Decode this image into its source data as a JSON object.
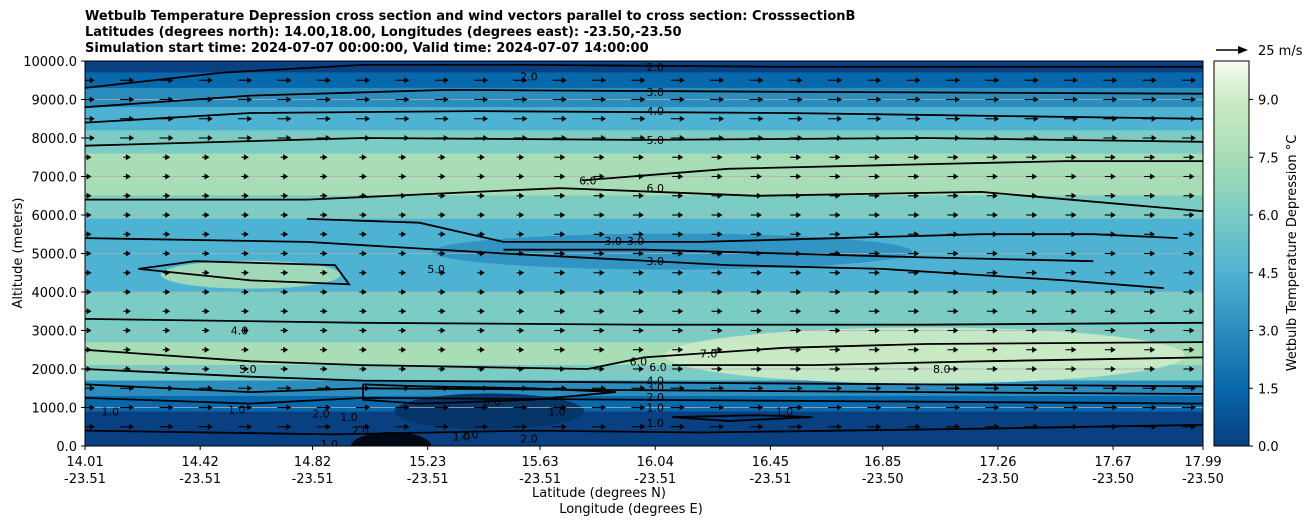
{
  "chart_data": {
    "type": "contour",
    "title_lines": [
      "Wetbulb Temperature Depression cross section and wind vectors parallel to cross section: CrosssectionB",
      "Latitudes (degrees north): 14.00,18.00, Longitudes (degrees east): -23.50,-23.50",
      "Simulation start time: 2024-07-07 00:00:00, Valid time: 2024-07-07 14:00:00"
    ],
    "xlabel_lat": "Latitude (degrees N)",
    "xlabel_lon": "Longitude (degrees E)",
    "ylabel": "Altitude (meters)",
    "ylim": [
      0,
      10000
    ],
    "yticks": [
      "0.0",
      "1000.0",
      "2000.0",
      "3000.0",
      "4000.0",
      "5000.0",
      "6000.0",
      "7000.0",
      "8000.0",
      "9000.0",
      "10000.0"
    ],
    "xticks": [
      {
        "lat": "14.01",
        "lon": "-23.51"
      },
      {
        "lat": "14.42",
        "lon": "-23.51"
      },
      {
        "lat": "14.82",
        "lon": "-23.51"
      },
      {
        "lat": "15.23",
        "lon": "-23.51"
      },
      {
        "lat": "15.63",
        "lon": "-23.51"
      },
      {
        "lat": "16.04",
        "lon": "-23.51"
      },
      {
        "lat": "16.45",
        "lon": "-23.51"
      },
      {
        "lat": "16.85",
        "lon": "-23.50"
      },
      {
        "lat": "17.26",
        "lon": "-23.50"
      },
      {
        "lat": "17.67",
        "lon": "-23.50"
      },
      {
        "lat": "17.99",
        "lon": "-23.50"
      }
    ],
    "colorbar": {
      "label": "Wetbulb Temperature Depression °C",
      "range": [
        0,
        10
      ],
      "ticks": [
        "0.0",
        "1.5",
        "3.0",
        "4.5",
        "6.0",
        "7.5",
        "9.0"
      ],
      "colormap": "GnBu_r"
    },
    "quiver_key": "25 m/s",
    "contour_labels": [
      {
        "text": "2.0",
        "lat": 15.59,
        "alt": 9600
      },
      {
        "text": "2.0",
        "lat": 16.04,
        "alt": 9850
      },
      {
        "text": "3.0",
        "lat": 16.04,
        "alt": 9200
      },
      {
        "text": "4.0",
        "lat": 16.04,
        "alt": 8700
      },
      {
        "text": "5.0",
        "lat": 16.04,
        "alt": 7950
      },
      {
        "text": "6.0",
        "lat": 16.04,
        "alt": 6700
      },
      {
        "text": "6.0",
        "lat": 15.8,
        "alt": 6900
      },
      {
        "text": "3.0",
        "lat": 15.89,
        "alt": 5330
      },
      {
        "text": "3.0",
        "lat": 15.97,
        "alt": 5330
      },
      {
        "text": "3.0",
        "lat": 16.04,
        "alt": 4800
      },
      {
        "text": "5.0",
        "lat": 15.26,
        "alt": 4600
      },
      {
        "text": "4.0",
        "lat": 14.56,
        "alt": 3000
      },
      {
        "text": "5.0",
        "lat": 14.59,
        "alt": 2000
      },
      {
        "text": "6.0",
        "lat": 15.98,
        "alt": 2200
      },
      {
        "text": "6.0",
        "lat": 16.05,
        "alt": 2050
      },
      {
        "text": "7.0",
        "lat": 16.23,
        "alt": 2400
      },
      {
        "text": "8.0",
        "lat": 17.06,
        "alt": 2000
      },
      {
        "text": "4.0",
        "lat": 16.04,
        "alt": 1700
      },
      {
        "text": "3.0",
        "lat": 16.04,
        "alt": 1530
      },
      {
        "text": "2.0",
        "lat": 16.04,
        "alt": 1270
      },
      {
        "text": "1.0",
        "lat": 16.04,
        "alt": 1000
      },
      {
        "text": "1.0",
        "lat": 16.04,
        "alt": 600
      },
      {
        "text": "1.0",
        "lat": 14.55,
        "alt": 950
      },
      {
        "text": "2.0",
        "lat": 14.85,
        "alt": 850
      },
      {
        "text": "1.0",
        "lat": 15.69,
        "alt": 900
      },
      {
        "text": "2.0",
        "lat": 15.38,
        "alt": 300
      },
      {
        "text": "2.0",
        "lat": 15.59,
        "alt": 200
      },
      {
        "text": "1.0",
        "lat": 16.5,
        "alt": 900
      },
      {
        "text": "1.0",
        "lat": 15.35,
        "alt": 250
      },
      {
        "text": "0.0",
        "lat": 15.46,
        "alt": 1150
      },
      {
        "text": "1.0",
        "lat": 14.1,
        "alt": 900
      },
      {
        "text": "1.0",
        "lat": 14.95,
        "alt": 750
      },
      {
        "text": "1.0",
        "lat": 14.88,
        "alt": 50
      },
      {
        "text": "2.0",
        "lat": 14.99,
        "alt": 400
      }
    ]
  }
}
